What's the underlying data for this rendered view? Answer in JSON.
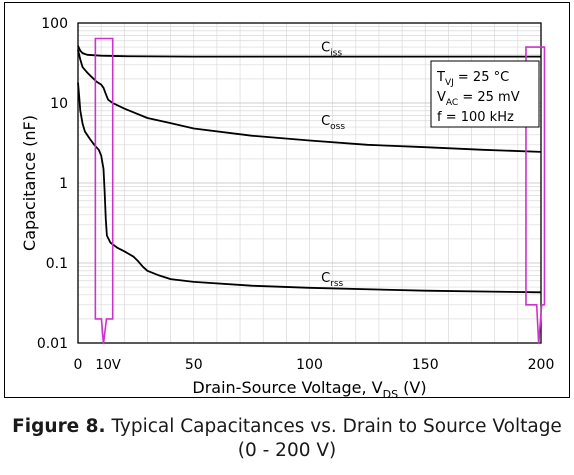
{
  "chart_data": {
    "type": "line",
    "ylabel": "Capacitance (nF)",
    "xlabel_main": "Drain-Source Voltage, V",
    "xlabel_sub": "DS",
    "xlabel_tail": " (V)",
    "xlim": [
      0,
      200
    ],
    "ylim": [
      0.01,
      100
    ],
    "yscale": "log",
    "grid": true,
    "x_ticks": [
      {
        "value": 0,
        "label": "0"
      },
      {
        "value": 50,
        "label": "50"
      },
      {
        "value": 100,
        "label": "100"
      },
      {
        "value": 150,
        "label": "150"
      },
      {
        "value": 200,
        "label": "200"
      }
    ],
    "x_extra_label": {
      "value": 13,
      "label": "10V"
    },
    "y_ticks": [
      {
        "value": 100,
        "label": "100"
      },
      {
        "value": 10,
        "label": "10"
      },
      {
        "value": 1,
        "label": "1"
      },
      {
        "value": 0.1,
        "label": "0.1"
      },
      {
        "value": 0.01,
        "label": "0.01"
      }
    ],
    "series": [
      {
        "name_main": "C",
        "name_sub": "iss",
        "label_at": [
          105,
          44
        ],
        "points": [
          [
            0,
            52
          ],
          [
            0.5,
            48
          ],
          [
            1,
            45
          ],
          [
            2,
            42
          ],
          [
            4,
            40
          ],
          [
            10,
            39
          ],
          [
            20,
            38.5
          ],
          [
            50,
            38
          ],
          [
            100,
            38
          ],
          [
            150,
            38
          ],
          [
            200,
            38
          ]
        ]
      },
      {
        "name_main": "C",
        "name_sub": "oss",
        "label_at": [
          105,
          5.3
        ],
        "points": [
          [
            0,
            46
          ],
          [
            1,
            35
          ],
          [
            2,
            28
          ],
          [
            4,
            24
          ],
          [
            6,
            21
          ],
          [
            8,
            18.5
          ],
          [
            10,
            17
          ],
          [
            11,
            15.5
          ],
          [
            12,
            13
          ],
          [
            13,
            11
          ],
          [
            15,
            10
          ],
          [
            20,
            8.5
          ],
          [
            30,
            6.5
          ],
          [
            40,
            5.6
          ],
          [
            50,
            4.8
          ],
          [
            75,
            3.9
          ],
          [
            100,
            3.4
          ],
          [
            125,
            3.0
          ],
          [
            150,
            2.8
          ],
          [
            175,
            2.6
          ],
          [
            200,
            2.45
          ]
        ]
      },
      {
        "name_main": "C",
        "name_sub": "rss",
        "label_at": [
          105,
          0.058
        ],
        "points": [
          [
            0,
            18
          ],
          [
            0.5,
            12
          ],
          [
            1,
            8
          ],
          [
            2,
            5.5
          ],
          [
            3,
            4.4
          ],
          [
            5,
            3.6
          ],
          [
            7,
            3.0
          ],
          [
            9,
            2.6
          ],
          [
            10,
            2.2
          ],
          [
            11,
            1.5
          ],
          [
            11.5,
            0.8
          ],
          [
            12,
            0.35
          ],
          [
            12.5,
            0.22
          ],
          [
            14,
            0.18
          ],
          [
            17,
            0.155
          ],
          [
            20,
            0.14
          ],
          [
            24,
            0.12
          ],
          [
            26,
            0.105
          ],
          [
            28,
            0.09
          ],
          [
            30,
            0.08
          ],
          [
            35,
            0.07
          ],
          [
            40,
            0.063
          ],
          [
            50,
            0.058
          ],
          [
            75,
            0.052
          ],
          [
            100,
            0.049
          ],
          [
            150,
            0.045
          ],
          [
            200,
            0.043
          ]
        ]
      }
    ],
    "conditions": [
      {
        "main": "T",
        "sub": "VJ",
        "rest": " = 25 °C"
      },
      {
        "main": "V",
        "sub": "AC",
        "rest": " = 25 mV"
      },
      {
        "main": "f",
        "sub": "",
        "rest": " = 100 kHz"
      }
    ],
    "highlights": [
      {
        "x_from": 7.5,
        "x_to": 15,
        "y_top": 64,
        "y_bottom": 0.02,
        "pointer_x": 11
      },
      {
        "x_from": 193.5,
        "x_to": 201.5,
        "y_top": 50,
        "y_bottom": 0.03,
        "pointer_x": 199
      }
    ],
    "colors": {
      "series": "#000000",
      "grid": "#d9d9d9",
      "highlight": "#cc33cc"
    }
  },
  "caption": {
    "bold": "Figure 8.",
    "line1": " Typical Capacitances vs. Drain to Source Voltage",
    "line2": "(0 - 200 V)"
  }
}
